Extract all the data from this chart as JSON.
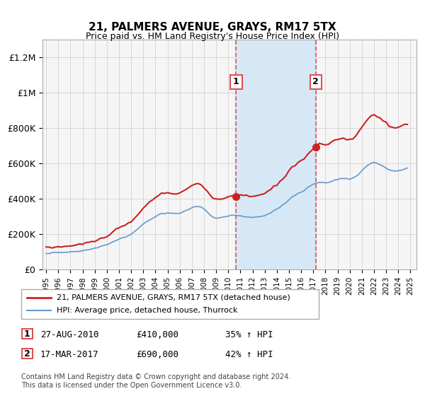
{
  "title": "21, PALMERS AVENUE, GRAYS, RM17 5TX",
  "subtitle": "Price paid vs. HM Land Registry's House Price Index (HPI)",
  "ylabel_ticks": [
    "£0",
    "£200K",
    "£400K",
    "£600K",
    "£800K",
    "£1M",
    "£1.2M"
  ],
  "ytick_values": [
    0,
    200000,
    400000,
    600000,
    800000,
    1000000,
    1200000
  ],
  "ylim": [
    0,
    1300000
  ],
  "xlim_start": 1995.0,
  "xlim_end": 2025.5,
  "background_color": "#ffffff",
  "plot_bg_color": "#f5f5f5",
  "shaded_region": [
    2010.65,
    2017.2
  ],
  "shaded_color": "#d6e8f5",
  "vline1_x": 2010.65,
  "vline2_x": 2017.2,
  "vline_color": "#e05050",
  "marker1_x": 2010.65,
  "marker1_y": 410000,
  "marker2_x": 2017.2,
  "marker2_y": 690000,
  "label1": "1",
  "label2": "2",
  "legend_line1": "21, PALMERS AVENUE, GRAYS, RM17 5TX (detached house)",
  "legend_line2": "HPI: Average price, detached house, Thurrock",
  "table_row1": [
    "1",
    "27-AUG-2010",
    "£410,000",
    "35% ↑ HPI"
  ],
  "table_row2": [
    "2",
    "17-MAR-2017",
    "£690,000",
    "42% ↑ HPI"
  ],
  "footer": "Contains HM Land Registry data © Crown copyright and database right 2024.\nThis data is licensed under the Open Government Licence v3.0.",
  "line1_color": "#cc2222",
  "line2_color": "#6699cc",
  "grid_color": "#cccccc",
  "xticks": [
    1995,
    1996,
    1997,
    1998,
    1999,
    2000,
    2001,
    2002,
    2003,
    2004,
    2005,
    2006,
    2007,
    2008,
    2009,
    2010,
    2011,
    2012,
    2013,
    2014,
    2015,
    2016,
    2017,
    2018,
    2019,
    2020,
    2021,
    2022,
    2023,
    2024,
    2025
  ]
}
